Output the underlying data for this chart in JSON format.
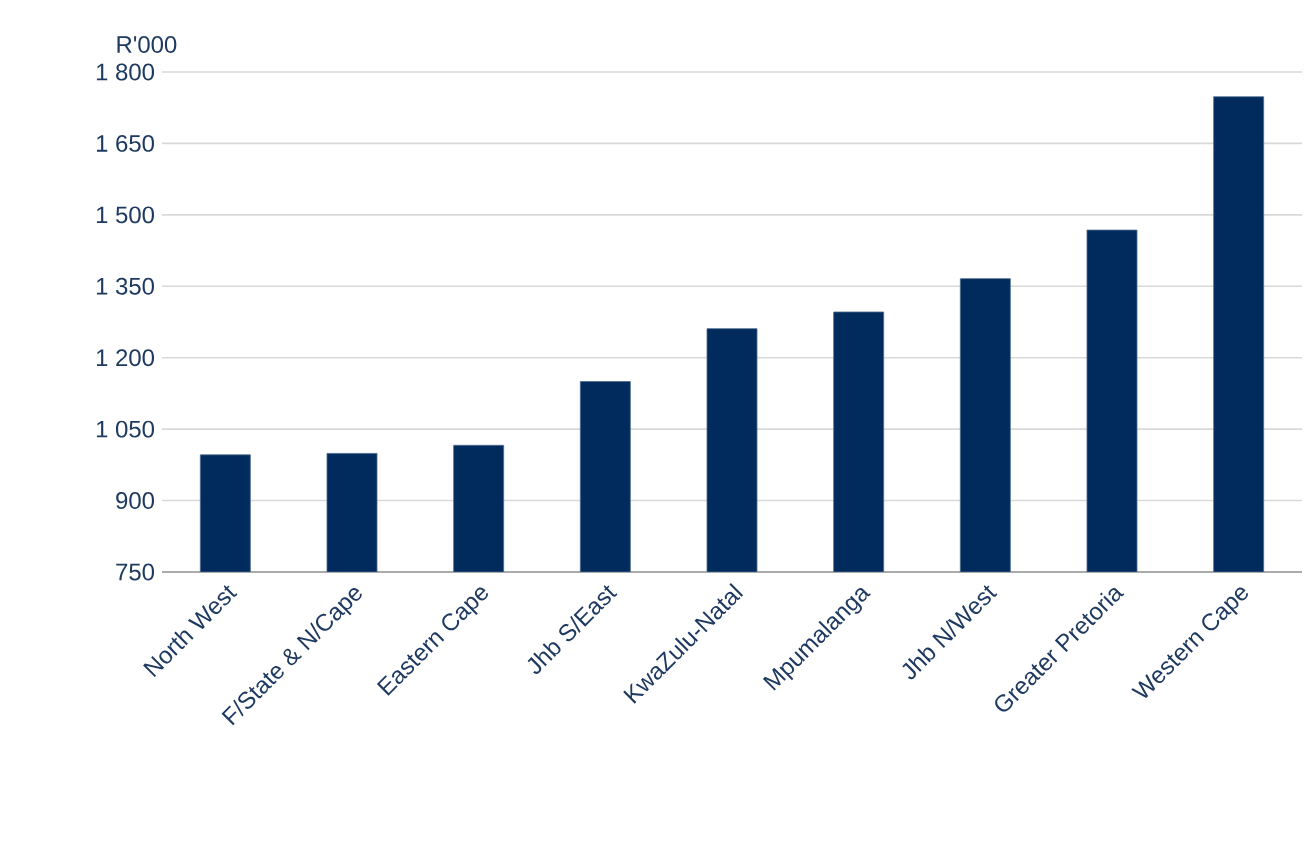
{
  "chart_data": {
    "type": "bar",
    "ylabel": "R'000",
    "categories": [
      "North West",
      "F/State & N/Cape",
      "Eastern Cape",
      "Jhb S/East",
      "KwaZulu-Natal",
      "Mpumalanga",
      "Jhb N/West",
      "Greater Pretoria",
      "Western Cape"
    ],
    "values": [
      996,
      999,
      1016,
      1150,
      1261,
      1296,
      1366,
      1468,
      1748
    ],
    "color": "#002b5c",
    "ylim": [
      750,
      1800
    ],
    "yticks": [
      {
        "value": 750,
        "label": "750"
      },
      {
        "value": 900,
        "label": "900"
      },
      {
        "value": 1050,
        "label": "1 050"
      },
      {
        "value": 1200,
        "label": "1 200"
      },
      {
        "value": 1350,
        "label": "1 350"
      },
      {
        "value": 1500,
        "label": "1 500"
      },
      {
        "value": 1650,
        "label": "1 650"
      },
      {
        "value": 1800,
        "label": "1 800"
      }
    ],
    "grid": "y"
  }
}
